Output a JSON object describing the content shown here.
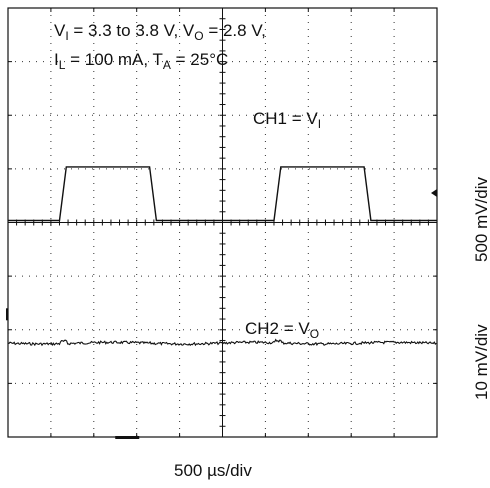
{
  "annotations": {
    "line1": {
      "a": "V",
      "a_sub": "I",
      "b": " = 3.3  to 3.8 V, V",
      "b_sub": "O",
      "c": " = 2.8 V,"
    },
    "line2": {
      "a": "I",
      "a_sub": "L",
      "b": " = 100 mA, T",
      "b_sub": "A",
      "c": " = 25°C"
    },
    "ch1": {
      "a": "CH1 = V",
      "sub": "I"
    },
    "ch2": {
      "a": "CH2 = V",
      "sub": "O"
    }
  },
  "axis_labels": {
    "ch1_scale": "500 mV/div",
    "ch2_scale": "10 mV/div",
    "time_scale": "500  µs/div"
  },
  "chart_data": {
    "type": "line",
    "grid": true,
    "xlim": [
      0,
      5000
    ],
    "x_unit": "µs",
    "divisions": {
      "x": 10,
      "y": 8
    },
    "x_per_div": 500,
    "series": [
      {
        "channel": "CH1",
        "volts_per_div": 0.5,
        "low": 3.3,
        "high": 3.8,
        "points": [
          [
            0,
            3.3
          ],
          [
            600,
            3.3
          ],
          [
            680,
            3.8
          ],
          [
            1650,
            3.8
          ],
          [
            1730,
            3.3
          ],
          [
            3100,
            3.3
          ],
          [
            3180,
            3.8
          ],
          [
            4150,
            3.8
          ],
          [
            4230,
            3.3
          ],
          [
            5000,
            3.3
          ]
        ]
      },
      {
        "channel": "CH2",
        "volts_per_div": 0.01,
        "nominal": 2.8,
        "ripple_mV": 1
      }
    ]
  }
}
